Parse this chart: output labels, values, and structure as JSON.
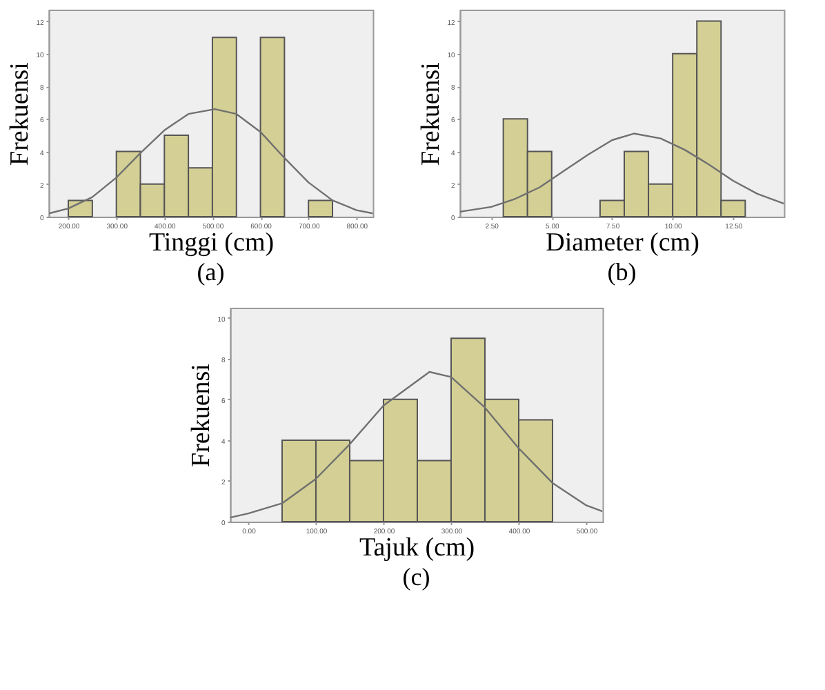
{
  "chart_data": [
    {
      "type": "histogram",
      "xlabel": "Tinggi (cm)",
      "ylabel": "Frekuensi",
      "annotations": [
        "(a)"
      ],
      "bins": [
        200,
        250,
        300,
        350,
        400,
        450,
        500,
        550,
        600,
        650,
        700,
        750
      ],
      "values": [
        1,
        0,
        4,
        2,
        5,
        3,
        11,
        0,
        11,
        0,
        1
      ],
      "color": "#d4cf94",
      "xlim": [
        159,
        834
      ],
      "ylim": [
        0,
        12.7
      ],
      "xticks": [
        {
          "value": 200,
          "label": "200.00"
        },
        {
          "value": 300,
          "label": "300.00"
        },
        {
          "value": 400,
          "label": "400.00"
        },
        {
          "value": 500,
          "label": "500.00"
        },
        {
          "value": 600,
          "label": "600.00"
        },
        {
          "value": 700,
          "label": "700.00"
        },
        {
          "value": 800,
          "label": "800.00"
        }
      ],
      "yticks": [
        0,
        2,
        4,
        6,
        8,
        10,
        12
      ],
      "series": [
        {
          "type": "line",
          "color": "#707070",
          "x": [
            160,
            200,
            250,
            300,
            350,
            400,
            450,
            505,
            550,
            600,
            650,
            700,
            750,
            800,
            834
          ],
          "values": [
            0.2,
            0.5,
            1.2,
            2.4,
            3.9,
            5.3,
            6.3,
            6.6,
            6.3,
            5.2,
            3.6,
            2.1,
            1.0,
            0.4,
            0.2
          ]
        }
      ]
    },
    {
      "type": "histogram",
      "xlabel": "Diameter (cm)",
      "ylabel": "Frekuensi",
      "annotations": [
        "(b)"
      ],
      "bins": [
        3,
        4,
        5,
        6,
        7,
        8,
        9,
        10,
        11,
        12,
        13
      ],
      "values": [
        6,
        4,
        0,
        0,
        1,
        4,
        2,
        10,
        12,
        1
      ],
      "color": "#d4cf94",
      "xlim": [
        1.2,
        14.6
      ],
      "ylim": [
        0,
        12.7
      ],
      "xticks": [
        {
          "value": 2.5,
          "label": "2.50"
        },
        {
          "value": 5,
          "label": "5.00"
        },
        {
          "value": 7.5,
          "label": "7.50"
        },
        {
          "value": 10,
          "label": "10.00"
        },
        {
          "value": 12.5,
          "label": "12.50"
        }
      ],
      "yticks": [
        0,
        2,
        4,
        6,
        8,
        10,
        12
      ],
      "series": [
        {
          "type": "line",
          "color": "#707070",
          "x": [
            1.2,
            2.5,
            3.5,
            4.5,
            5.5,
            6.5,
            7.5,
            8.4,
            9.5,
            10.5,
            11.5,
            12.5,
            13.5,
            14.6
          ],
          "values": [
            0.3,
            0.6,
            1.1,
            1.8,
            2.8,
            3.8,
            4.7,
            5.1,
            4.8,
            4.1,
            3.2,
            2.2,
            1.4,
            0.8
          ]
        }
      ]
    },
    {
      "type": "histogram",
      "xlabel": "Tajuk (cm)",
      "ylabel": "Frekuensi",
      "annotations": [
        "(c)"
      ],
      "bins": [
        50,
        100,
        150,
        200,
        250,
        300,
        350,
        400,
        450
      ],
      "values": [
        4,
        4,
        3,
        6,
        3,
        9,
        6,
        5
      ],
      "color": "#d4cf94",
      "xlim": [
        -27,
        524
      ],
      "ylim": [
        0,
        10.5
      ],
      "xticks": [
        {
          "value": 0,
          "label": "0.00"
        },
        {
          "value": 100,
          "label": "100.00"
        },
        {
          "value": 200,
          "label": "200.00"
        },
        {
          "value": 300,
          "label": "300.00"
        },
        {
          "value": 400,
          "label": "400.00"
        },
        {
          "value": 500,
          "label": "500.00"
        }
      ],
      "yticks": [
        0,
        2,
        4,
        6,
        8,
        10
      ],
      "series": [
        {
          "type": "line",
          "color": "#707070",
          "x": [
            -27,
            0,
            50,
            100,
            150,
            200,
            268,
            300,
            350,
            400,
            450,
            500,
            524
          ],
          "values": [
            0.2,
            0.4,
            0.9,
            2.1,
            3.8,
            5.7,
            7.35,
            7.1,
            5.6,
            3.6,
            1.9,
            0.8,
            0.5
          ]
        }
      ]
    }
  ]
}
